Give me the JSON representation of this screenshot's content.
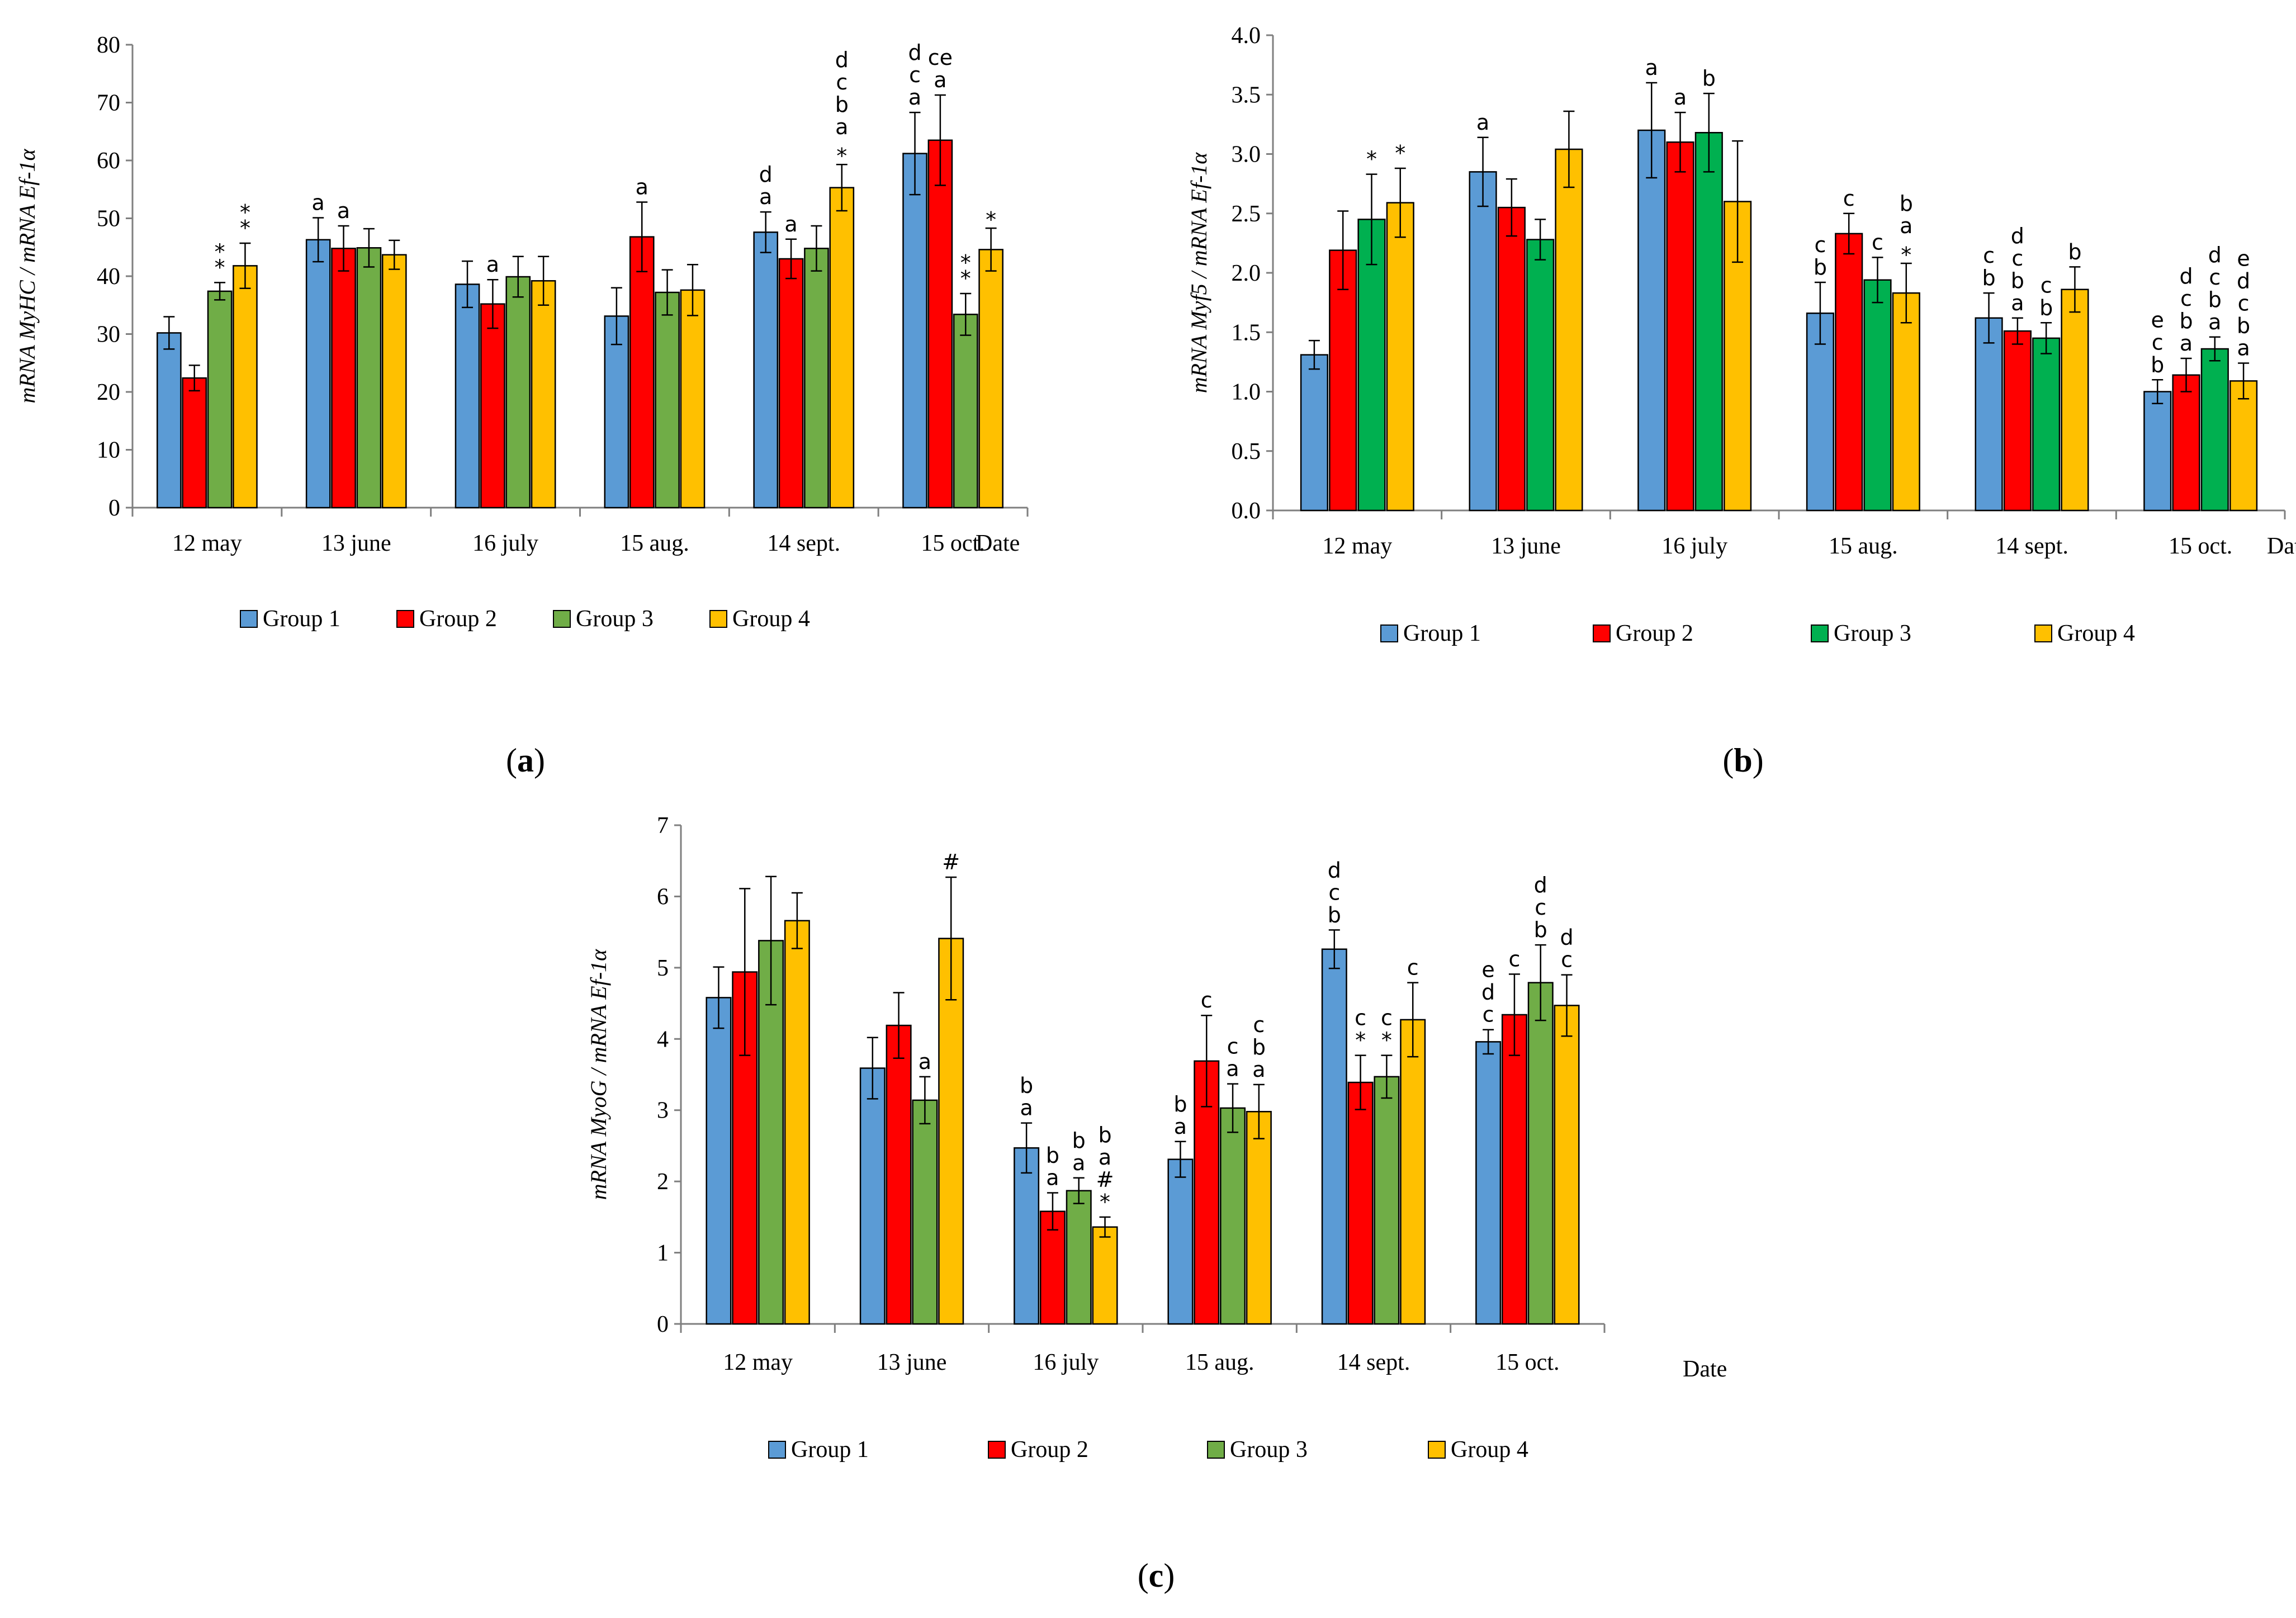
{
  "colors": {
    "g1": "#5B9BD5",
    "g2": "#FF0000",
    "g3a": "#70AD47",
    "g3b": "#00B050",
    "g4": "#FFC000"
  },
  "chart_data": [
    {
      "id": "a",
      "type": "bar",
      "panel_label": "a",
      "ylabel": "mRNA MyHC / mRNA Ef-1α",
      "xlabel": "Date",
      "ylim": [
        0,
        80
      ],
      "ytick_step": 10,
      "ytick_decimals": 0,
      "categories": [
        "12 may",
        "13 june",
        "16 july",
        "15 aug.",
        "14 sept.",
        "15 oct."
      ],
      "series": [
        {
          "name": "Group 1",
          "color": "#5B9BD5",
          "values": [
            30.2,
            46.3,
            38.6,
            33.1,
            47.6,
            61.2
          ],
          "errors": [
            2.8,
            3.8,
            4.0,
            4.9,
            3.5,
            7.1
          ],
          "labels": [
            [],
            [
              "a"
            ],
            [],
            [],
            [
              "a",
              "d"
            ],
            [
              "a",
              "c",
              "d"
            ]
          ]
        },
        {
          "name": "Group 2",
          "color": "#FF0000",
          "values": [
            22.4,
            44.8,
            35.2,
            46.8,
            43.0,
            63.5
          ],
          "errors": [
            2.2,
            3.9,
            4.2,
            6.0,
            3.4,
            7.8
          ],
          "labels": [
            [],
            [
              "a"
            ],
            [
              "a"
            ],
            [
              "a"
            ],
            [
              "a"
            ],
            [
              "a",
              "ce"
            ]
          ]
        },
        {
          "name": "Group 3",
          "color": "#70AD47",
          "values": [
            37.4,
            44.9,
            39.9,
            37.2,
            44.8,
            33.4
          ],
          "errors": [
            1.5,
            3.3,
            3.5,
            3.9,
            3.9,
            3.6
          ],
          "labels": [
            [
              "*",
              "⁎"
            ],
            [],
            [],
            [],
            [],
            [
              "*",
              "⁎"
            ]
          ]
        },
        {
          "name": "Group 4",
          "color": "#FFC000",
          "values": [
            41.8,
            43.7,
            39.2,
            37.6,
            55.3,
            44.6
          ],
          "errors": [
            3.9,
            2.5,
            4.2,
            4.4,
            4.0,
            3.7
          ],
          "labels": [
            [
              "*",
              "⁎"
            ],
            [],
            [],
            [],
            [
              "⁎",
              "a",
              "b",
              "c",
              "d"
            ],
            [
              "⁎"
            ]
          ]
        }
      ]
    },
    {
      "id": "b",
      "type": "bar",
      "panel_label": "b",
      "ylabel": "mRNA Myf5 / mRNA Ef-1α",
      "xlabel": "Date",
      "ylim": [
        0,
        4
      ],
      "ytick_step": 0.5,
      "ytick_decimals": 1,
      "categories": [
        "12 may",
        "13 june",
        "16 july",
        "15 aug.",
        "14 sept.",
        "15 oct."
      ],
      "series": [
        {
          "name": "Group 1",
          "color": "#5B9BD5",
          "values": [
            1.31,
            2.85,
            3.2,
            1.66,
            1.62,
            1.0
          ],
          "errors": [
            0.12,
            0.29,
            0.4,
            0.26,
            0.21,
            0.1
          ],
          "labels": [
            [],
            [
              "a"
            ],
            [
              "a"
            ],
            [
              "b",
              "c"
            ],
            [
              "b",
              "c"
            ],
            [
              "b",
              "c",
              "e"
            ]
          ]
        },
        {
          "name": "Group 2",
          "color": "#FF0000",
          "values": [
            2.19,
            2.55,
            3.1,
            2.33,
            1.51,
            1.14
          ],
          "errors": [
            0.33,
            0.24,
            0.25,
            0.17,
            0.11,
            0.14
          ],
          "labels": [
            [],
            [],
            [
              "a"
            ],
            [
              "c"
            ],
            [
              "a",
              "b",
              "c",
              "d"
            ],
            [
              "a",
              "b",
              "c",
              "d"
            ]
          ]
        },
        {
          "name": "Group 3",
          "color": "#00B050",
          "values": [
            2.45,
            2.28,
            3.18,
            1.94,
            1.45,
            1.36
          ],
          "errors": [
            0.38,
            0.17,
            0.33,
            0.19,
            0.13,
            0.1
          ],
          "labels": [
            [
              "*"
            ],
            [],
            [
              "b"
            ],
            [
              "c"
            ],
            [
              "b",
              "c"
            ],
            [
              "a",
              "b",
              "c",
              "d"
            ]
          ]
        },
        {
          "name": "Group 4",
          "color": "#FFC000",
          "values": [
            2.59,
            3.04,
            2.6,
            1.83,
            1.86,
            1.09
          ],
          "errors": [
            0.29,
            0.32,
            0.51,
            0.25,
            0.19,
            0.15
          ],
          "labels": [
            [
              "*"
            ],
            [],
            [],
            [
              "⁎",
              "a",
              "b"
            ],
            [
              "b"
            ],
            [
              "a",
              "b",
              "c",
              "d",
              "e"
            ]
          ]
        }
      ]
    },
    {
      "id": "c",
      "type": "bar",
      "panel_label": "c",
      "ylabel": "mRNA MyoG / mRNA Ef-1α",
      "xlabel": "Date",
      "ylim": [
        0,
        7
      ],
      "ytick_step": 1,
      "ytick_decimals": 0,
      "categories": [
        "12 may",
        "13 june",
        "16 july",
        "15 aug.",
        "14 sept.",
        "15 oct."
      ],
      "series": [
        {
          "name": "Group 1",
          "color": "#5B9BD5",
          "values": [
            4.58,
            3.59,
            2.47,
            2.31,
            5.26,
            3.96
          ],
          "errors": [
            0.43,
            0.43,
            0.35,
            0.25,
            0.27,
            0.17
          ],
          "labels": [
            [],
            [],
            [
              "a",
              "b"
            ],
            [
              "a",
              "b"
            ],
            [
              "b",
              "c",
              "d"
            ],
            [
              "c",
              "d",
              "e"
            ]
          ]
        },
        {
          "name": "Group 2",
          "color": "#FF0000",
          "values": [
            4.94,
            4.19,
            1.58,
            3.69,
            3.39,
            4.34
          ],
          "errors": [
            1.17,
            0.46,
            0.26,
            0.64,
            0.38,
            0.57
          ],
          "labels": [
            [],
            [],
            [
              "a",
              "b"
            ],
            [
              "c"
            ],
            [
              "*",
              "c"
            ],
            [
              "c"
            ]
          ]
        },
        {
          "name": "Group 3",
          "color": "#70AD47",
          "values": [
            5.38,
            3.14,
            1.87,
            3.03,
            3.47,
            4.79
          ],
          "errors": [
            0.9,
            0.33,
            0.18,
            0.34,
            0.3,
            0.53
          ],
          "labels": [
            [],
            [
              "a"
            ],
            [
              "a",
              "b"
            ],
            [
              "a",
              "c"
            ],
            [
              "*",
              "c"
            ],
            [
              "b",
              "c",
              "d"
            ]
          ]
        },
        {
          "name": "Group 4",
          "color": "#FFC000",
          "values": [
            5.66,
            5.41,
            1.36,
            2.98,
            4.27,
            4.47
          ],
          "errors": [
            0.39,
            0.86,
            0.14,
            0.38,
            0.52,
            0.43
          ],
          "labels": [
            [],
            [
              "#"
            ],
            [
              "*",
              "#",
              "a",
              "b"
            ],
            [
              "a",
              "b",
              "c"
            ],
            [
              "c"
            ],
            [
              "c",
              "d"
            ]
          ]
        }
      ]
    }
  ]
}
